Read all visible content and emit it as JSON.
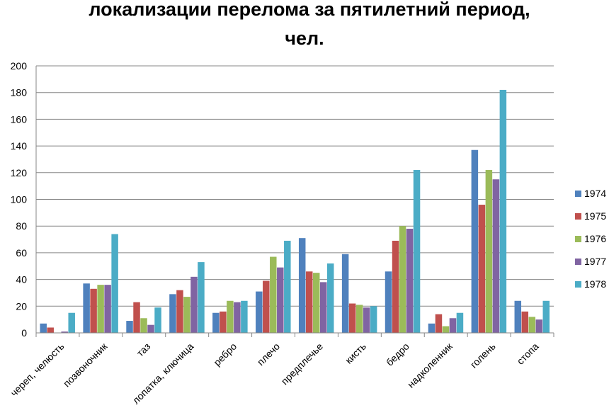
{
  "chart_data": {
    "type": "bar",
    "title_lines": [
      "локализации перелома за пятилетний период,",
      "чел."
    ],
    "xlabel": "",
    "ylabel": "",
    "ylim": [
      0,
      200
    ],
    "yticks": [
      0,
      20,
      40,
      60,
      80,
      100,
      120,
      140,
      160,
      180,
      200
    ],
    "grid": true,
    "legend_position": "right",
    "categories": [
      "череп, челюсть",
      "позвоночник",
      "таз",
      "лопатка, ключица",
      "ребро",
      "плечо",
      "предплечье",
      "кисть",
      "бедро",
      "надколенник",
      "голень",
      "стопа"
    ],
    "series": [
      {
        "name": "1974",
        "color": "#4f81bd",
        "values": [
          7,
          37,
          9,
          29,
          15,
          31,
          71,
          59,
          46,
          7,
          137,
          24
        ]
      },
      {
        "name": "1975",
        "color": "#c0504d",
        "values": [
          4,
          33,
          23,
          32,
          16,
          39,
          46,
          22,
          69,
          14,
          96,
          16
        ]
      },
      {
        "name": "1976",
        "color": "#9bbb59",
        "values": [
          0,
          36,
          11,
          27,
          24,
          57,
          45,
          21,
          80,
          5,
          122,
          12
        ]
      },
      {
        "name": "1977",
        "color": "#8064a2",
        "values": [
          1,
          36,
          6,
          42,
          23,
          49,
          38,
          19,
          78,
          11,
          115,
          10
        ]
      },
      {
        "name": "1978",
        "color": "#4bacc6",
        "values": [
          15,
          74,
          19,
          53,
          24,
          69,
          52,
          20,
          122,
          15,
          182,
          24
        ]
      }
    ]
  }
}
